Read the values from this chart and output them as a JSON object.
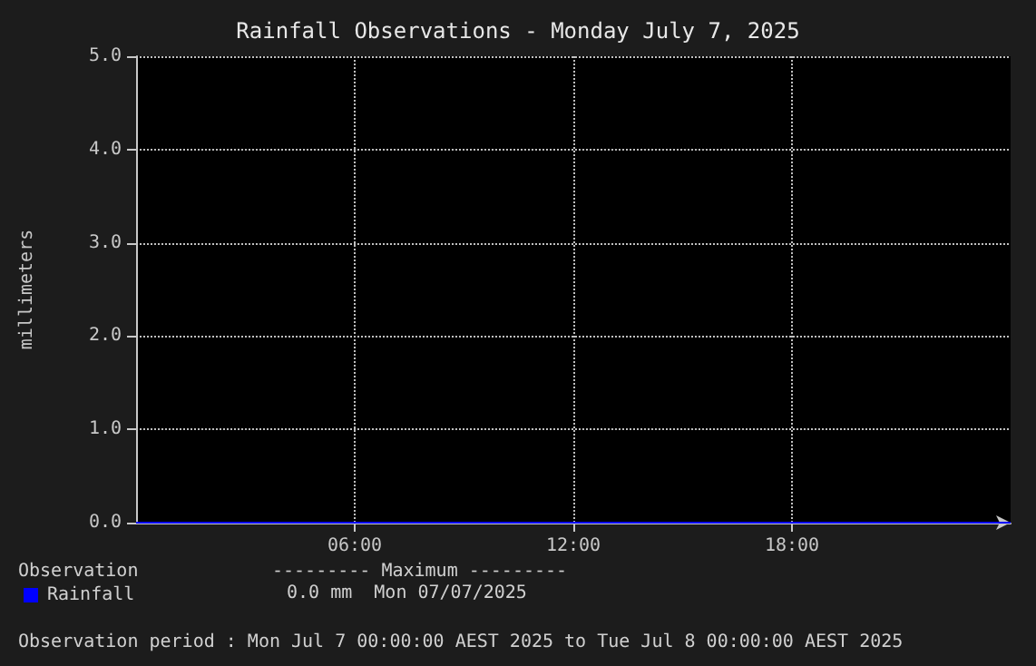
{
  "chart_data": {
    "type": "line",
    "title": "Rainfall Observations - Monday July 7, 2025",
    "ylabel": "millimeters",
    "x": [
      0,
      24
    ],
    "series": [
      {
        "name": "Rainfall",
        "color": "#0000ff",
        "values": [
          0,
          0
        ]
      }
    ],
    "xlim": [
      0,
      24
    ],
    "xticks": [
      {
        "value": 6,
        "label": "06:00"
      },
      {
        "value": 12,
        "label": "12:00"
      },
      {
        "value": 18,
        "label": "18:00"
      }
    ],
    "ylim": [
      0,
      5
    ],
    "yticks": [
      {
        "value": 0,
        "label": "0.0"
      },
      {
        "value": 1,
        "label": "1.0"
      },
      {
        "value": 2,
        "label": "2.0"
      },
      {
        "value": 3,
        "label": "3.0"
      },
      {
        "value": 4,
        "label": "4.0"
      },
      {
        "value": 5,
        "label": "5.0"
      }
    ],
    "grid": true,
    "legend": "bottom left",
    "annotations": [
      "Observation",
      "--------- Maximum ---------",
      "0.0 mm  Mon 07/07/2025",
      "Observation period : Mon Jul 7 00:00:00 AEST 2025 to Tue Jul 8 00:00:00 AEST 2025"
    ]
  }
}
